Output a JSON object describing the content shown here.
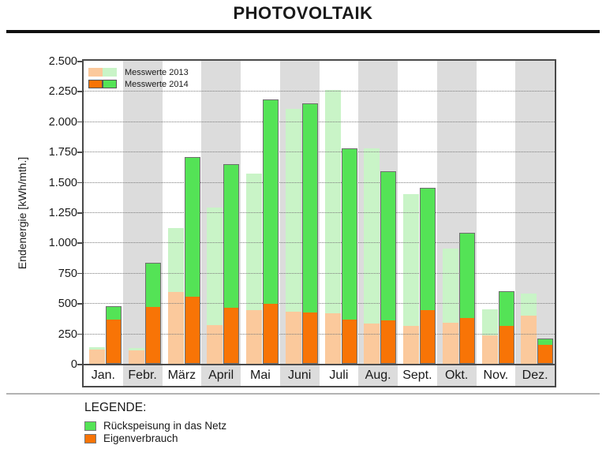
{
  "page": {
    "title": "PHOTOVOLTAIK"
  },
  "colors": {
    "pale_orange": "#fbc99c",
    "pale_green": "#c9f4c7",
    "bright_orange": "#f87406",
    "bright_green": "#54e356",
    "band_gray": "#dcdcdc",
    "frame": "#4a4a4a"
  },
  "chart_data": {
    "type": "bar",
    "stacked": true,
    "title": "PHOTOVOLTAIK",
    "ylabel": "Endenergie [kWh/mth.]",
    "ylim": [
      0,
      2500
    ],
    "ytick_step": 250,
    "ytick_labels": [
      "0",
      "250",
      "500",
      "750",
      "1.000",
      "1.250",
      "1.500",
      "1.750",
      "2.000",
      "2.250",
      "2.500"
    ],
    "categories": [
      "Jan.",
      "Febr.",
      "März",
      "April",
      "Mai",
      "Juni",
      "Juli",
      "Aug.",
      "Sept.",
      "Okt.",
      "Nov.",
      "Dez."
    ],
    "series": [
      {
        "name": "Messwerte 2013",
        "style": "pale",
        "eigenverbrauch": [
          115,
          110,
          590,
          320,
          440,
          430,
          415,
          330,
          315,
          340,
          235,
          400
        ],
        "rueckspeisung": [
          25,
          20,
          530,
          970,
          1130,
          1670,
          1845,
          1450,
          1085,
          610,
          215,
          180
        ]
      },
      {
        "name": "Messwerte 2014",
        "style": "bright",
        "eigenverbrauch": [
          360,
          460,
          545,
          455,
          490,
          420,
          355,
          350,
          435,
          370,
          305,
          150
        ],
        "rueckspeisung": [
          115,
          375,
          1160,
          1195,
          1690,
          1730,
          1425,
          1240,
          1015,
          710,
          295,
          60
        ]
      }
    ],
    "legend_position": "top-left",
    "grid": "horizontal-dotted",
    "background_bands": "alternating gray on even months"
  },
  "bottom_legend": {
    "heading": "LEGENDE:",
    "items": [
      {
        "label": "Rückspeisung in das Netz",
        "color_key": "bright_green"
      },
      {
        "label": "Eigenverbrauch",
        "color_key": "bright_orange"
      }
    ]
  }
}
